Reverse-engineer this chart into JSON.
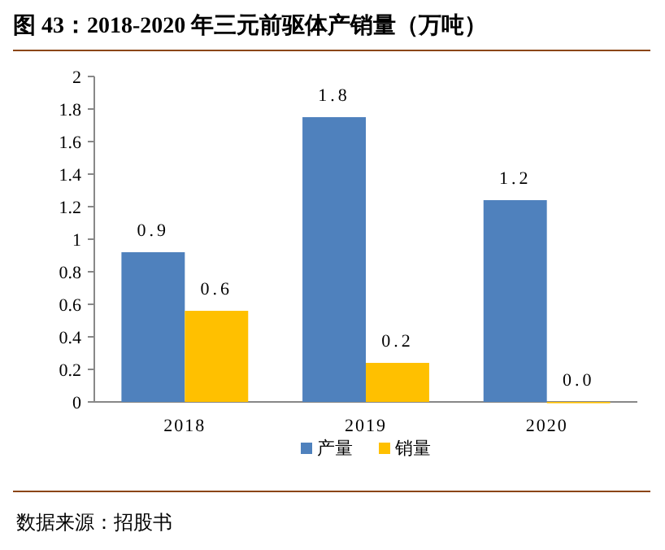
{
  "chart_data": {
    "type": "bar",
    "title": "图 43：2018-2020 年三元前驱体产销量（万吨）",
    "categories": [
      "2018",
      "2019",
      "2020"
    ],
    "series": [
      {
        "name": "产量",
        "color": "#4f81bd",
        "values": [
          0.92,
          1.75,
          1.24
        ],
        "value_labels": [
          "0.9",
          "1.8",
          "1.2"
        ]
      },
      {
        "name": "销量",
        "color": "#ffc000",
        "values": [
          0.56,
          0.24,
          0.0
        ],
        "value_labels": [
          "0.6",
          "0.2",
          "0.0"
        ]
      }
    ],
    "ylim": [
      0,
      2
    ],
    "yticks": [
      0,
      0.2,
      0.4,
      0.6,
      0.8,
      1,
      1.2,
      1.4,
      1.6,
      1.8,
      2
    ],
    "grid": false,
    "legend": "bottom",
    "annotations": [
      "数据来源：招股书"
    ]
  }
}
